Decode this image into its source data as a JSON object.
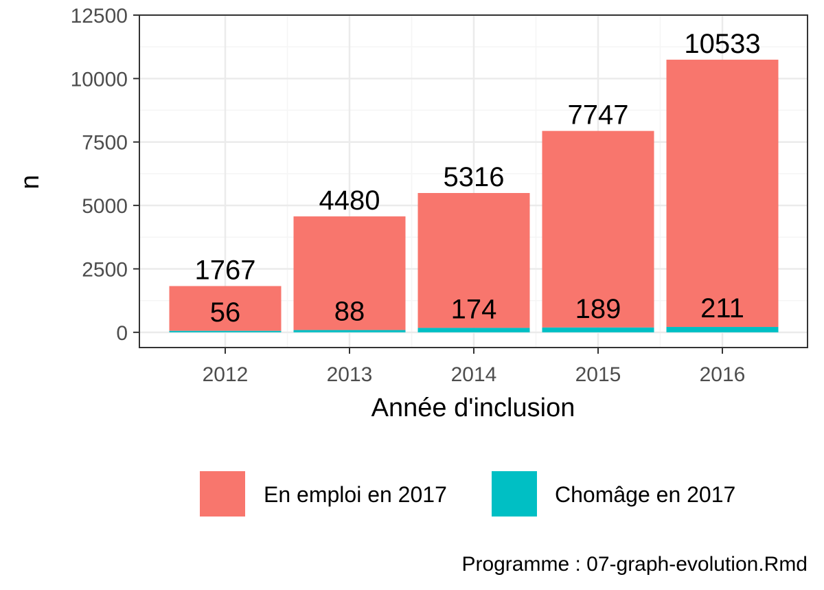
{
  "chart_data": {
    "type": "bar",
    "stacked": true,
    "categories": [
      "2012",
      "2013",
      "2014",
      "2015",
      "2016"
    ],
    "series": [
      {
        "name": "Chomâge en 2017",
        "values": [
          56,
          88,
          174,
          189,
          211
        ],
        "color": "#00BFC4"
      },
      {
        "name": "En emploi en 2017",
        "values": [
          1767,
          4480,
          5316,
          7747,
          10533
        ],
        "color": "#F8766D"
      }
    ],
    "xlabel": "Année d'inclusion",
    "ylabel": "n",
    "ylim": [
      -600,
      12500
    ],
    "yticks": [
      0,
      2500,
      5000,
      7500,
      10000,
      12500
    ],
    "grid": true,
    "legend_position": "bottom",
    "legend_order": [
      "En emploi en 2017",
      "Chomâge en 2017"
    ]
  },
  "caption": "Programme : 07-graph-evolution.Rmd",
  "colors": {
    "panel_border": "#333333",
    "grid_major": "#ebebeb",
    "grid_minor": "#f5f5f5"
  }
}
